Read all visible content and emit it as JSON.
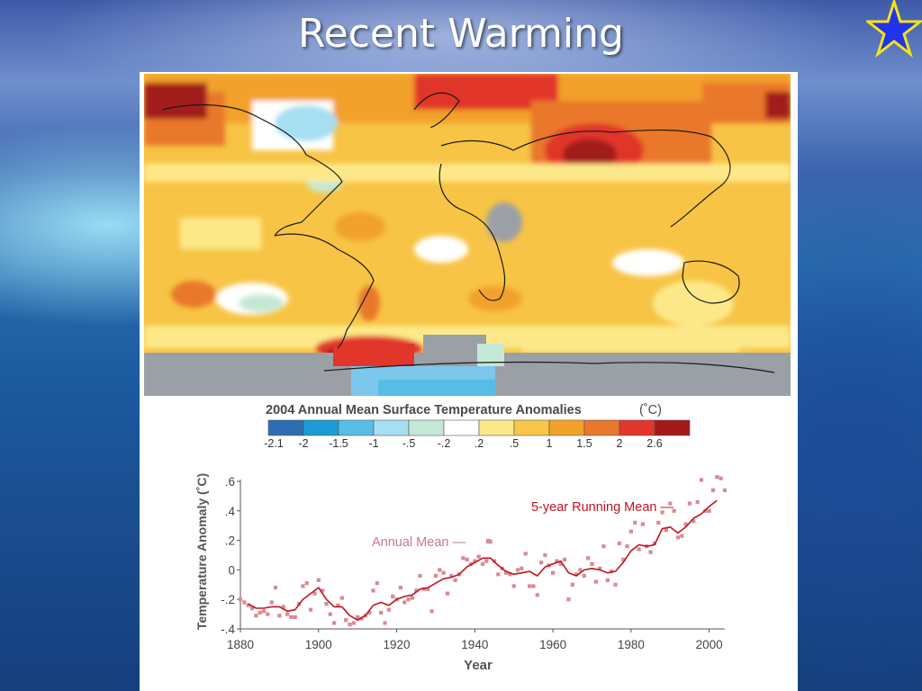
{
  "slide": {
    "title": "Recent Warming"
  },
  "colors": {
    "scale": [
      "#2f6db3",
      "#1d9ad8",
      "#56bde6",
      "#a6dff2",
      "#c5e8d6",
      "#ffffff",
      "#fde98a",
      "#f8c64a",
      "#f2a12a",
      "#e9782c",
      "#e2362b",
      "#a31a1a"
    ],
    "line": "#c0141f",
    "dots": "#d98a94"
  },
  "chart_data": [
    {
      "type": "heatmap",
      "title": "2004 Annual Mean Surface Temperature Anomalies",
      "unit": "(˚C)",
      "legend_ticks": [
        "-2.1",
        "-2",
        "-1.5",
        "-1",
        "-.5",
        "-.2",
        ".2",
        ".5",
        "1",
        "1.5",
        "2",
        "2.6"
      ]
    },
    {
      "type": "line",
      "xlabel": "Year",
      "ylabel": "Temperature Anomaly (˚C)",
      "xlim": [
        1880,
        2004
      ],
      "ylim": [
        -0.4,
        0.6
      ],
      "xticks": [
        1880,
        1900,
        1920,
        1940,
        1960,
        1980,
        2000
      ],
      "yticks": [
        -0.4,
        -0.2,
        0,
        0.2,
        0.4,
        0.6
      ],
      "ytick_labels": [
        "-.4",
        "-.2",
        "0",
        ".2",
        ".4",
        ".6"
      ],
      "xtick_labels": [
        "1880",
        "1900",
        "1920",
        "1940",
        "1960",
        "1980",
        "2000"
      ],
      "series": [
        {
          "name": "Annual Mean",
          "style": "points",
          "x": [
            1880,
            1881,
            1882,
            1883,
            1884,
            1885,
            1886,
            1887,
            1888,
            1889,
            1890,
            1891,
            1892,
            1893,
            1894,
            1895,
            1896,
            1897,
            1898,
            1899,
            1900,
            1901,
            1902,
            1903,
            1904,
            1905,
            1906,
            1907,
            1908,
            1909,
            1910,
            1911,
            1912,
            1913,
            1914,
            1915,
            1916,
            1917,
            1918,
            1919,
            1920,
            1921,
            1922,
            1923,
            1924,
            1925,
            1926,
            1927,
            1928,
            1929,
            1930,
            1931,
            1932,
            1933,
            1934,
            1935,
            1936,
            1937,
            1938,
            1939,
            1940,
            1941,
            1942,
            1943,
            1944,
            1945,
            1946,
            1947,
            1948,
            1949,
            1950,
            1951,
            1952,
            1953,
            1954,
            1955,
            1956,
            1957,
            1958,
            1959,
            1960,
            1961,
            1962,
            1963,
            1964,
            1965,
            1966,
            1967,
            1968,
            1969,
            1970,
            1971,
            1972,
            1973,
            1974,
            1975,
            1976,
            1977,
            1978,
            1979,
            1980,
            1981,
            1982,
            1983,
            1984,
            1985,
            1986,
            1987,
            1988,
            1989,
            1990,
            1991,
            1992,
            1993,
            1994,
            1995,
            1996,
            1997,
            1998,
            1999,
            2000,
            2001,
            2002,
            2003,
            2004
          ],
          "y": [
            -0.2,
            -0.22,
            -0.24,
            -0.26,
            -0.31,
            -0.29,
            -0.28,
            -0.3,
            -0.22,
            -0.12,
            -0.31,
            -0.25,
            -0.3,
            -0.32,
            -0.32,
            -0.23,
            -0.11,
            -0.09,
            -0.27,
            -0.16,
            -0.07,
            -0.14,
            -0.23,
            -0.3,
            -0.36,
            -0.24,
            -0.19,
            -0.34,
            -0.37,
            -0.36,
            -0.32,
            -0.33,
            -0.31,
            -0.29,
            -0.14,
            -0.09,
            -0.29,
            -0.36,
            -0.27,
            -0.18,
            -0.2,
            -0.12,
            -0.22,
            -0.2,
            -0.19,
            -0.14,
            -0.04,
            -0.13,
            -0.13,
            -0.28,
            -0.04,
            0.0,
            -0.02,
            -0.16,
            -0.04,
            -0.07,
            -0.03,
            0.08,
            0.07,
            0.04,
            0.06,
            0.09,
            0.04,
            0.06,
            0.19,
            0.06,
            -0.03,
            0.01,
            -0.02,
            -0.03,
            -0.11,
            0.0,
            0.01,
            0.11,
            -0.11,
            -0.11,
            -0.17,
            0.05,
            0.1,
            0.03,
            -0.02,
            0.06,
            0.04,
            0.07,
            -0.2,
            -0.1,
            -0.03,
            0.0,
            -0.04,
            0.08,
            0.04,
            -0.08,
            0.01,
            0.16,
            -0.07,
            -0.01,
            -0.1,
            0.18,
            0.07,
            0.16,
            0.26,
            0.32,
            0.14,
            0.31,
            0.16,
            0.12,
            0.18,
            0.32,
            0.39,
            0.27,
            0.45,
            0.4,
            0.22,
            0.23,
            0.31,
            0.45,
            0.33,
            0.46,
            0.61,
            0.4,
            0.4,
            0.54,
            0.63,
            0.62,
            0.54
          ]
        },
        {
          "name": "5-year Running Mean",
          "style": "line",
          "x": [
            1882,
            1884,
            1886,
            1888,
            1890,
            1892,
            1894,
            1896,
            1898,
            1900,
            1902,
            1904,
            1906,
            1908,
            1910,
            1912,
            1914,
            1916,
            1918,
            1920,
            1922,
            1924,
            1926,
            1928,
            1930,
            1932,
            1934,
            1936,
            1938,
            1940,
            1942,
            1944,
            1946,
            1948,
            1950,
            1952,
            1954,
            1956,
            1958,
            1960,
            1962,
            1964,
            1966,
            1968,
            1970,
            1972,
            1974,
            1976,
            1978,
            1980,
            1982,
            1984,
            1986,
            1988,
            1990,
            1992,
            1994,
            1996,
            1998,
            2000,
            2002
          ],
          "y": [
            -0.23,
            -0.26,
            -0.26,
            -0.25,
            -0.25,
            -0.28,
            -0.27,
            -0.2,
            -0.16,
            -0.12,
            -0.2,
            -0.25,
            -0.25,
            -0.31,
            -0.34,
            -0.31,
            -0.24,
            -0.22,
            -0.24,
            -0.2,
            -0.18,
            -0.17,
            -0.13,
            -0.12,
            -0.09,
            -0.06,
            -0.05,
            -0.03,
            0.02,
            0.05,
            0.08,
            0.08,
            0.03,
            -0.01,
            -0.03,
            -0.02,
            -0.01,
            -0.04,
            0.02,
            0.04,
            0.06,
            -0.02,
            -0.04,
            0.0,
            0.01,
            0.0,
            -0.02,
            -0.01,
            0.05,
            0.13,
            0.17,
            0.16,
            0.17,
            0.28,
            0.29,
            0.25,
            0.29,
            0.35,
            0.38,
            0.43,
            0.47
          ]
        }
      ]
    }
  ]
}
